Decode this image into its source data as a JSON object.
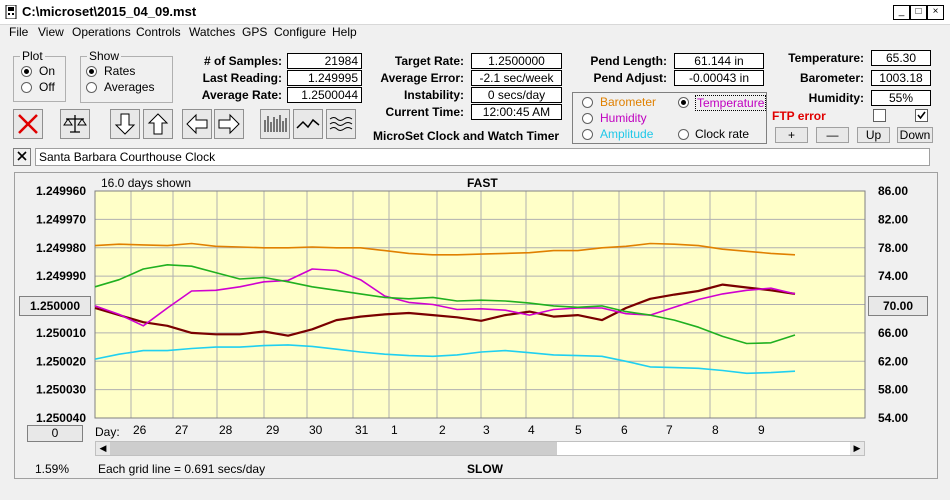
{
  "window": {
    "title": "C:\\microset\\2015_04_09.mst",
    "min_icon": "_",
    "max_icon": "□",
    "close_icon": "×"
  },
  "menu": [
    "File",
    "View",
    "Operations",
    "Controls",
    "Watches",
    "GPS",
    "Configure",
    "Help"
  ],
  "plot_group": {
    "caption": "Plot",
    "on": "On",
    "off": "Off"
  },
  "show_group": {
    "caption": "Show",
    "rates": "Rates",
    "averages": "Averages"
  },
  "stats": {
    "samples_label": "# of Samples:",
    "samples": "21984",
    "last_label": "Last Reading:",
    "last": "1.249995",
    "avg_label": "Average Rate:",
    "avg": "1.2500044"
  },
  "target": {
    "target_label": "Target Rate:",
    "target": "1.2500000",
    "avgerr_label": "Average Error:",
    "avgerr": "-2.1 sec/week",
    "instab_label": "Instability:",
    "instab": "0 secs/day",
    "time_label": "Current Time:",
    "time": "12:00:45 AM"
  },
  "app_name": "MicroSet Clock and Watch Timer",
  "pend": {
    "length_label": "Pend Length:",
    "length": "61.144 in",
    "adjust_label": "Pend Adjust:",
    "adjust": "-0.00043 in"
  },
  "overlay": {
    "barometer": "Barometer",
    "temperature": "Temperature",
    "humidity": "Humidity",
    "amplitude": "Amplitude",
    "clockrate": "Clock rate"
  },
  "env": {
    "temp_label": "Temperature:",
    "temp": "65.30",
    "baro_label": "Barometer:",
    "baro": "1003.18",
    "hum_label": "Humidity:",
    "hum": "55%"
  },
  "ftp_error": "FTP error",
  "scale_buttons": {
    "plus": "+",
    "minus": "—",
    "up": "Up",
    "down": "Down"
  },
  "description": "Santa Barbara Courthouse Clock",
  "chart": {
    "days_shown": "16.0 days shown",
    "fast": "FAST",
    "slow": "SLOW",
    "grid_note": "Each grid line = 0.691 secs/day",
    "pct": "1.59%",
    "left_btn": "1.250000",
    "right_btn": "70.00",
    "zero_btn": "0",
    "day_label": "Day:"
  },
  "chart_data": {
    "type": "line",
    "title": "FAST",
    "xlabel": "Day",
    "x_ticks": [
      "26",
      "27",
      "28",
      "29",
      "30",
      "31",
      "1",
      "2",
      "3",
      "4",
      "5",
      "6",
      "7",
      "8",
      "9"
    ],
    "y_left_ticks": [
      "1.249960",
      "1.249970",
      "1.249980",
      "1.249990",
      "1.250000",
      "1.250010",
      "1.250020",
      "1.250030",
      "1.250040"
    ],
    "y_right_ticks": [
      "86.00",
      "82.00",
      "78.00",
      "74.00",
      "70.00",
      "66.00",
      "62.00",
      "58.00",
      "54.00"
    ],
    "ylim_left": [
      1.24996,
      1.25004
    ],
    "ylim_right": [
      54,
      86
    ],
    "grid": true,
    "series": [
      {
        "name": "Clock rate",
        "color": "#7a0000",
        "values": [
          69.5,
          68.5,
          67.5,
          67.0,
          66.0,
          65.8,
          65.8,
          66.2,
          65.6,
          66.5,
          67.8,
          68.3,
          68.6,
          68.8,
          68.5,
          68.2,
          67.7,
          68.5,
          69.0,
          68.3,
          68.5,
          67.8,
          69.5,
          70.8,
          71.4,
          71.9,
          72.8,
          72.4,
          72.0,
          71.5
        ]
      },
      {
        "name": "Temperature",
        "color": "#d000d0",
        "values": [
          69.8,
          68.6,
          67.0,
          69.5,
          71.9,
          72.0,
          72.5,
          73.2,
          73.4,
          75.0,
          74.8,
          73.5,
          71.2,
          70.3,
          70.0,
          69.3,
          69.4,
          69.2,
          68.5,
          69.3,
          69.5,
          69.5,
          68.7,
          68.5,
          69.6,
          70.7,
          71.5,
          72.0,
          72.3,
          71.5
        ]
      },
      {
        "name": "Barometer",
        "color": "#e08000",
        "values": [
          78.3,
          78.5,
          78.4,
          78.3,
          78.6,
          78.2,
          78.1,
          78.0,
          78.0,
          78.1,
          78.0,
          78.0,
          77.6,
          77.2,
          77.0,
          77.0,
          77.1,
          77.2,
          77.3,
          77.6,
          77.6,
          78.0,
          78.2,
          78.6,
          78.5,
          78.3,
          77.8,
          77.5,
          77.2,
          77.0
        ]
      },
      {
        "name": "Humidity",
        "color": "#20b020",
        "values": [
          72.5,
          73.5,
          75.0,
          75.6,
          75.4,
          74.5,
          73.6,
          73.8,
          73.2,
          72.5,
          72.0,
          71.5,
          71.0,
          70.8,
          71.0,
          70.5,
          70.6,
          70.5,
          70.2,
          69.8,
          69.6,
          69.8,
          69.0,
          68.5,
          67.8,
          66.8,
          65.5,
          64.5,
          64.6,
          65.7
        ]
      },
      {
        "name": "Amplitude",
        "color": "#20d0f0",
        "values": [
          62.3,
          63.0,
          63.5,
          63.5,
          63.8,
          64.0,
          64.0,
          64.2,
          64.3,
          64.1,
          63.7,
          63.3,
          63.0,
          62.8,
          62.7,
          62.9,
          63.3,
          63.5,
          63.2,
          62.9,
          62.8,
          62.7,
          62.0,
          61.2,
          61.1,
          61.0,
          60.7,
          60.3,
          60.4,
          60.6
        ]
      }
    ]
  }
}
